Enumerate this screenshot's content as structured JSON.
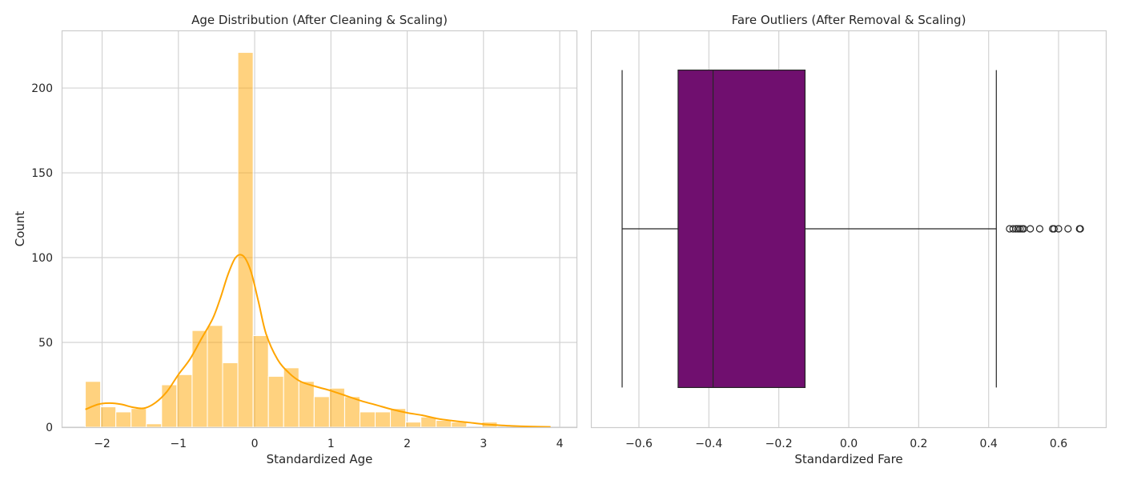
{
  "chart_data": [
    {
      "type": "bar",
      "subtype": "histogram-with-kde",
      "title": "Age Distribution (After Cleaning & Scaling)",
      "xlabel": "Standardized Age",
      "ylabel": "Count",
      "xlim": [
        -2.52,
        4.22
      ],
      "ylim": [
        0,
        234
      ],
      "xticks": [
        -2,
        -1,
        0,
        1,
        2,
        3,
        4
      ],
      "xtick_labels": [
        "−2",
        "−1",
        "0",
        "1",
        "2",
        "3",
        "4"
      ],
      "yticks": [
        0,
        50,
        100,
        150,
        200
      ],
      "ytick_labels": [
        "0",
        "50",
        "100",
        "150",
        "200"
      ],
      "grid": true,
      "bar_color": "#ffa500",
      "bar_opacity": 0.5,
      "kde_color": "#ffa500",
      "bins": [
        {
          "x0": -2.22,
          "x1": -2.02,
          "count": 27
        },
        {
          "x0": -2.02,
          "x1": -1.82,
          "count": 12
        },
        {
          "x0": -1.82,
          "x1": -1.62,
          "count": 9
        },
        {
          "x0": -1.62,
          "x1": -1.42,
          "count": 11
        },
        {
          "x0": -1.42,
          "x1": -1.22,
          "count": 2
        },
        {
          "x0": -1.22,
          "x1": -1.02,
          "count": 25
        },
        {
          "x0": -1.02,
          "x1": -0.82,
          "count": 31
        },
        {
          "x0": -0.82,
          "x1": -0.62,
          "count": 57
        },
        {
          "x0": -0.62,
          "x1": -0.42,
          "count": 60
        },
        {
          "x0": -0.42,
          "x1": -0.22,
          "count": 38
        },
        {
          "x0": -0.22,
          "x1": -0.02,
          "count": 221
        },
        {
          "x0": -0.02,
          "x1": 0.18,
          "count": 54
        },
        {
          "x0": 0.18,
          "x1": 0.38,
          "count": 30
        },
        {
          "x0": 0.38,
          "x1": 0.58,
          "count": 35
        },
        {
          "x0": 0.58,
          "x1": 0.78,
          "count": 27
        },
        {
          "x0": 0.78,
          "x1": 0.98,
          "count": 18
        },
        {
          "x0": 0.98,
          "x1": 1.18,
          "count": 23
        },
        {
          "x0": 1.18,
          "x1": 1.38,
          "count": 18
        },
        {
          "x0": 1.38,
          "x1": 1.58,
          "count": 9
        },
        {
          "x0": 1.58,
          "x1": 1.78,
          "count": 9
        },
        {
          "x0": 1.78,
          "x1": 1.98,
          "count": 11
        },
        {
          "x0": 1.98,
          "x1": 2.18,
          "count": 3
        },
        {
          "x0": 2.18,
          "x1": 2.38,
          "count": 6
        },
        {
          "x0": 2.38,
          "x1": 2.58,
          "count": 4
        },
        {
          "x0": 2.58,
          "x1": 2.78,
          "count": 3
        },
        {
          "x0": 2.78,
          "x1": 2.98,
          "count": 0
        },
        {
          "x0": 2.98,
          "x1": 3.18,
          "count": 3
        }
      ],
      "kde": {
        "x": [
          -2.22,
          -2.05,
          -1.9,
          -1.75,
          -1.6,
          -1.45,
          -1.3,
          -1.15,
          -1.0,
          -0.85,
          -0.7,
          -0.55,
          -0.45,
          -0.35,
          -0.25,
          -0.15,
          -0.05,
          0.05,
          0.15,
          0.3,
          0.45,
          0.6,
          0.8,
          1.0,
          1.2,
          1.4,
          1.6,
          1.8,
          2.0,
          2.2,
          2.4,
          2.6,
          2.8,
          3.0,
          3.2,
          3.4,
          3.6,
          3.88
        ],
        "y": [
          10.5,
          13.5,
          14.2,
          13.5,
          11.8,
          11.2,
          14.5,
          21,
          31,
          40,
          52,
          64,
          76,
          90,
          100,
          101,
          92,
          74,
          55,
          40,
          32,
          27,
          24,
          21.5,
          18.5,
          15.5,
          13,
          10.5,
          8.5,
          7,
          5,
          3.8,
          2.8,
          1.8,
          1.2,
          0.7,
          0.4,
          0.2
        ]
      }
    },
    {
      "type": "box",
      "orientation": "horizontal",
      "title": "Fare Outliers (After Removal & Scaling)",
      "xlabel": "Standardized Fare",
      "xlim": [
        -0.735,
        0.735
      ],
      "xticks": [
        -0.6,
        -0.4,
        -0.2,
        0.0,
        0.2,
        0.4,
        0.6
      ],
      "xtick_labels": [
        "−0.6",
        "−0.4",
        "−0.2",
        "0.0",
        "0.2",
        "0.4",
        "0.6"
      ],
      "grid": true,
      "box_color": "#700f6f",
      "whisker_low": -0.648,
      "q1": -0.488,
      "median": -0.388,
      "q3": -0.125,
      "whisker_high": 0.422,
      "outliers": [
        0.46,
        0.47,
        0.478,
        0.484,
        0.49,
        0.496,
        0.5,
        0.519,
        0.546,
        0.583,
        0.587,
        0.6,
        0.627,
        0.66,
        0.662
      ]
    }
  ]
}
